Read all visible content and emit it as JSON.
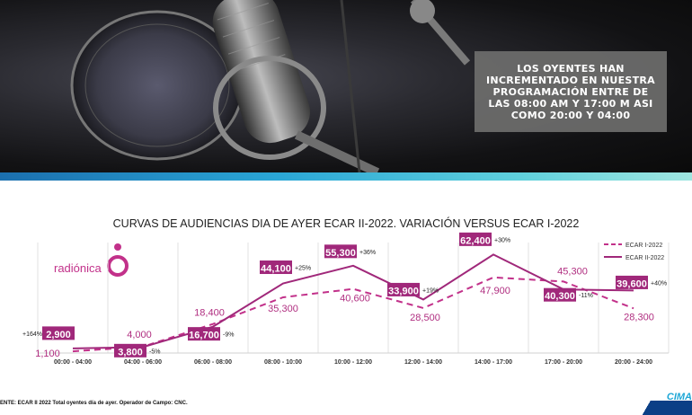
{
  "hero": {
    "callout_text": "LOS OYENTES HAN INCREMENTADO EN NUESTRA PROGRAMACIÓN ENTRE DE LAS 08:00 AM Y 17:00 M ASI COMO 20:00 Y 04:00"
  },
  "brand": {
    "name": "radiónica",
    "color": "#c2318a"
  },
  "chart_data": {
    "type": "line",
    "title": "CURVAS DE AUDIENCIAS DIA DE AYER ECAR II-2022. VARIACIÓN VERSUS ECAR I-2022",
    "categories": [
      "00:00 - 04:00",
      "04:00 - 06:00",
      "06:00 - 08:00",
      "08:00 - 10:00",
      "10:00 - 12:00",
      "12:00 - 14:00",
      "14:00 - 17:00",
      "17:00 - 20:00",
      "20:00 - 24:00"
    ],
    "series": [
      {
        "name": "ECAR I-2022",
        "style": "dashed",
        "color": "#c2318a",
        "values": [
          1100,
          4000,
          18400,
          35300,
          40600,
          28500,
          47900,
          45300,
          28300
        ],
        "labels": [
          "1,100",
          "4,000",
          "18,400",
          "35,300",
          "40,600",
          "28,500",
          "47,900",
          "45,300",
          "28,300"
        ]
      },
      {
        "name": "ECAR II-2022",
        "style": "solid",
        "color": "#a0287a",
        "values": [
          2900,
          3800,
          16700,
          44100,
          55300,
          33900,
          62400,
          40300,
          39600
        ],
        "labels": [
          "2,900",
          "3,800",
          "16,700",
          "44,100",
          "55,300",
          "33,900",
          "62,400",
          "40,300",
          "39,600"
        ]
      }
    ],
    "variations": [
      "+164%",
      "-5%",
      "-9%",
      "+25%",
      "+36%",
      "+19%",
      "+30%",
      "-11%",
      "+40%"
    ],
    "ylim": [
      0,
      70000
    ],
    "legend_position": "top-right",
    "grid": "vertical"
  },
  "footer": {
    "source": "ENTE: ECAR II 2022 Total oyentes día de ayer. Operador de Campo: CNC."
  },
  "corner_logo": "CIMA"
}
